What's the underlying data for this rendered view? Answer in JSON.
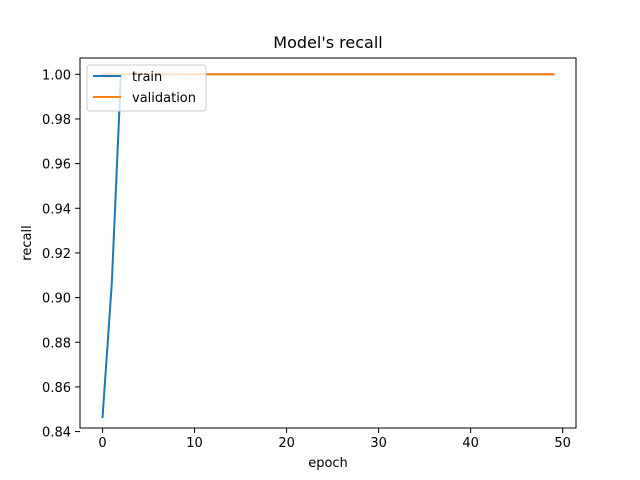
{
  "chart_data": {
    "type": "line",
    "title": "Model's recall",
    "xlabel": "epoch",
    "ylabel": "recall",
    "xlim": [
      -2.45,
      51.45
    ],
    "ylim": [
      0.8416,
      1.0073
    ],
    "xticks": [
      0,
      10,
      20,
      30,
      40,
      50
    ],
    "yticks": [
      0.84,
      0.86,
      0.88,
      0.9,
      0.92,
      0.94,
      0.96,
      0.98,
      1.0
    ],
    "ytick_labels": [
      "0.84",
      "0.86",
      "0.88",
      "0.90",
      "0.92",
      "0.94",
      "0.96",
      "0.98",
      "1.00"
    ],
    "grid": false,
    "legend_position": "upper-left",
    "series": [
      {
        "name": "train",
        "color": "#1f77b4",
        "x": [
          0,
          1,
          2,
          3,
          4,
          5,
          6,
          7,
          8,
          9,
          10,
          11,
          12,
          13,
          14,
          15,
          16,
          17,
          18,
          19,
          20,
          21,
          22,
          23,
          24,
          25,
          26,
          27,
          28,
          29,
          30,
          31,
          32,
          33,
          34,
          35,
          36,
          37,
          38,
          39,
          40,
          41,
          42,
          43,
          44,
          45,
          46,
          47,
          48,
          49
        ],
        "values": [
          0.8465,
          0.906,
          1.0,
          1.0,
          1.0,
          1.0,
          1.0,
          1.0,
          1.0,
          1.0,
          1.0,
          1.0,
          1.0,
          1.0,
          1.0,
          1.0,
          1.0,
          1.0,
          1.0,
          1.0,
          1.0,
          1.0,
          1.0,
          1.0,
          1.0,
          1.0,
          1.0,
          1.0,
          1.0,
          1.0,
          1.0,
          1.0,
          1.0,
          1.0,
          1.0,
          1.0,
          1.0,
          1.0,
          1.0,
          1.0,
          1.0,
          1.0,
          1.0,
          1.0,
          1.0,
          1.0,
          1.0,
          1.0,
          1.0,
          1.0
        ]
      },
      {
        "name": "validation",
        "color": "#ff7f0e",
        "x": [
          0,
          1,
          2,
          3,
          4,
          5,
          6,
          7,
          8,
          9,
          10,
          11,
          12,
          13,
          14,
          15,
          16,
          17,
          18,
          19,
          20,
          21,
          22,
          23,
          24,
          25,
          26,
          27,
          28,
          29,
          30,
          31,
          32,
          33,
          34,
          35,
          36,
          37,
          38,
          39,
          40,
          41,
          42,
          43,
          44,
          45,
          46,
          47,
          48,
          49
        ],
        "values": [
          1.0,
          1.0,
          1.0,
          1.0,
          1.0,
          1.0,
          1.0,
          1.0,
          1.0,
          1.0,
          1.0,
          1.0,
          1.0,
          1.0,
          1.0,
          1.0,
          1.0,
          1.0,
          1.0,
          1.0,
          1.0,
          1.0,
          1.0,
          1.0,
          1.0,
          1.0,
          1.0,
          1.0,
          1.0,
          1.0,
          1.0,
          1.0,
          1.0,
          1.0,
          1.0,
          1.0,
          1.0,
          1.0,
          1.0,
          1.0,
          1.0,
          1.0,
          1.0,
          1.0,
          1.0,
          1.0,
          1.0,
          1.0,
          1.0,
          1.0
        ]
      }
    ]
  }
}
